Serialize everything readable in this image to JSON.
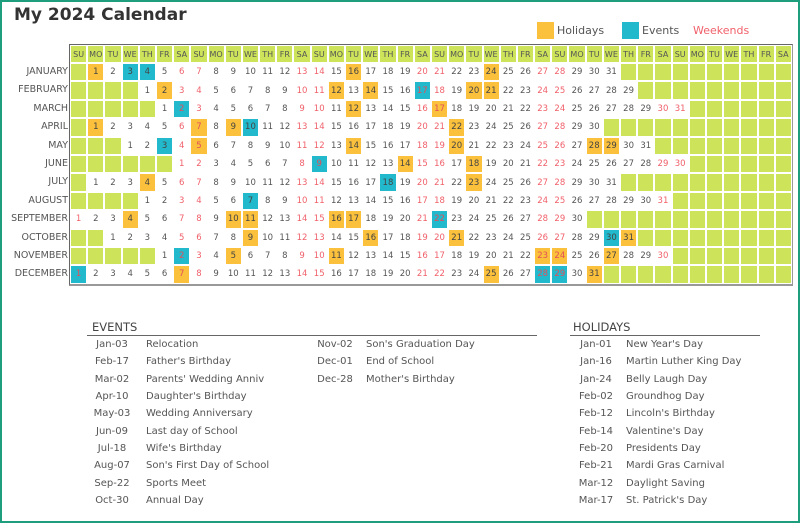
{
  "title": "My 2024 Calendar",
  "year": 2024,
  "legend": {
    "holidays": "Holidays",
    "events": "Events",
    "weekends": "Weekends"
  },
  "colors": {
    "holiday": "#fbc13c",
    "event": "#23b9cc",
    "weekend": "#f0606a",
    "empty": "#cde35a",
    "frame": "#1e9e7c"
  },
  "weekday_headers": [
    "SU",
    "MO",
    "TU",
    "WE",
    "TH",
    "FR",
    "SA",
    "SU",
    "MO",
    "TU",
    "WE",
    "TH",
    "FR",
    "SA",
    "SU",
    "MO",
    "TU",
    "WE",
    "TH",
    "FR",
    "SA",
    "SU",
    "MO",
    "TU",
    "WE",
    "TH",
    "FR",
    "SA",
    "SU",
    "MO",
    "TU",
    "WE",
    "TH",
    "FR",
    "SA",
    "SU",
    "MO",
    "TU",
    "WE",
    "TH",
    "FR",
    "SA"
  ],
  "months": [
    {
      "name": "JANUARY",
      "holidays": [
        1,
        16,
        24
      ],
      "events": [
        3,
        4
      ]
    },
    {
      "name": "FEBRUARY",
      "holidays": [
        2,
        12,
        14,
        20,
        21
      ],
      "events": [
        17
      ]
    },
    {
      "name": "MARCH",
      "holidays": [
        12,
        17
      ],
      "events": [
        2
      ]
    },
    {
      "name": "APRIL",
      "holidays": [
        1,
        7,
        9,
        22
      ],
      "events": [
        10
      ]
    },
    {
      "name": "MAY",
      "holidays": [
        5,
        14,
        20,
        28,
        29
      ],
      "events": [
        3
      ]
    },
    {
      "name": "JUNE",
      "holidays": [
        14,
        18
      ],
      "events": [
        9
      ]
    },
    {
      "name": "JULY",
      "holidays": [
        4,
        23
      ],
      "events": [
        18
      ]
    },
    {
      "name": "AUGUST",
      "holidays": [],
      "events": [
        7
      ]
    },
    {
      "name": "SEPTEMBER",
      "holidays": [
        4,
        10,
        11,
        16,
        17
      ],
      "events": [
        22
      ]
    },
    {
      "name": "OCTOBER",
      "holidays": [
        9,
        16,
        21,
        31
      ],
      "events": [
        30
      ]
    },
    {
      "name": "NOVEMBER",
      "holidays": [
        5,
        11,
        23,
        24,
        27
      ],
      "events": [
        2
      ]
    },
    {
      "name": "DECEMBER",
      "holidays": [
        7,
        25,
        31
      ],
      "events": [
        1,
        28,
        29
      ]
    }
  ],
  "events_section": {
    "heading": "EVENTS",
    "items": [
      {
        "date": "Jan-03",
        "name": "Relocation"
      },
      {
        "date": "Feb-17",
        "name": "Father's Birthday"
      },
      {
        "date": "Mar-02",
        "name": "Parents' Wedding Anniv"
      },
      {
        "date": "Apr-10",
        "name": "Daughter's Birthday"
      },
      {
        "date": "May-03",
        "name": "Wedding Anniversary"
      },
      {
        "date": "Jun-09",
        "name": "Last day of School"
      },
      {
        "date": "Jul-18",
        "name": "Wife's Birthday"
      },
      {
        "date": "Aug-07",
        "name": "Son's First Day of School"
      },
      {
        "date": "Sep-22",
        "name": "Sports Meet"
      },
      {
        "date": "Oct-30",
        "name": "Annual Day"
      },
      {
        "date": "Nov-02",
        "name": "Son's Graduation Day"
      },
      {
        "date": "Dec-01",
        "name": "End of School"
      },
      {
        "date": "Dec-28",
        "name": "Mother's Birthday"
      }
    ]
  },
  "holidays_section": {
    "heading": "HOLIDAYS",
    "items": [
      {
        "date": "Jan-01",
        "name": "New Year's Day"
      },
      {
        "date": "Jan-16",
        "name": "Martin Luther King Day"
      },
      {
        "date": "Jan-24",
        "name": "Belly Laugh Day"
      },
      {
        "date": "Feb-02",
        "name": "Groundhog Day"
      },
      {
        "date": "Feb-12",
        "name": "Lincoln's Birthday"
      },
      {
        "date": "Feb-14",
        "name": "Valentine's Day"
      },
      {
        "date": "Feb-20",
        "name": "Presidents Day"
      },
      {
        "date": "Feb-21",
        "name": "Mardi Gras Carnival"
      },
      {
        "date": "Mar-12",
        "name": "Daylight Saving"
      },
      {
        "date": "Mar-17",
        "name": "St. Patrick's Day"
      }
    ]
  }
}
